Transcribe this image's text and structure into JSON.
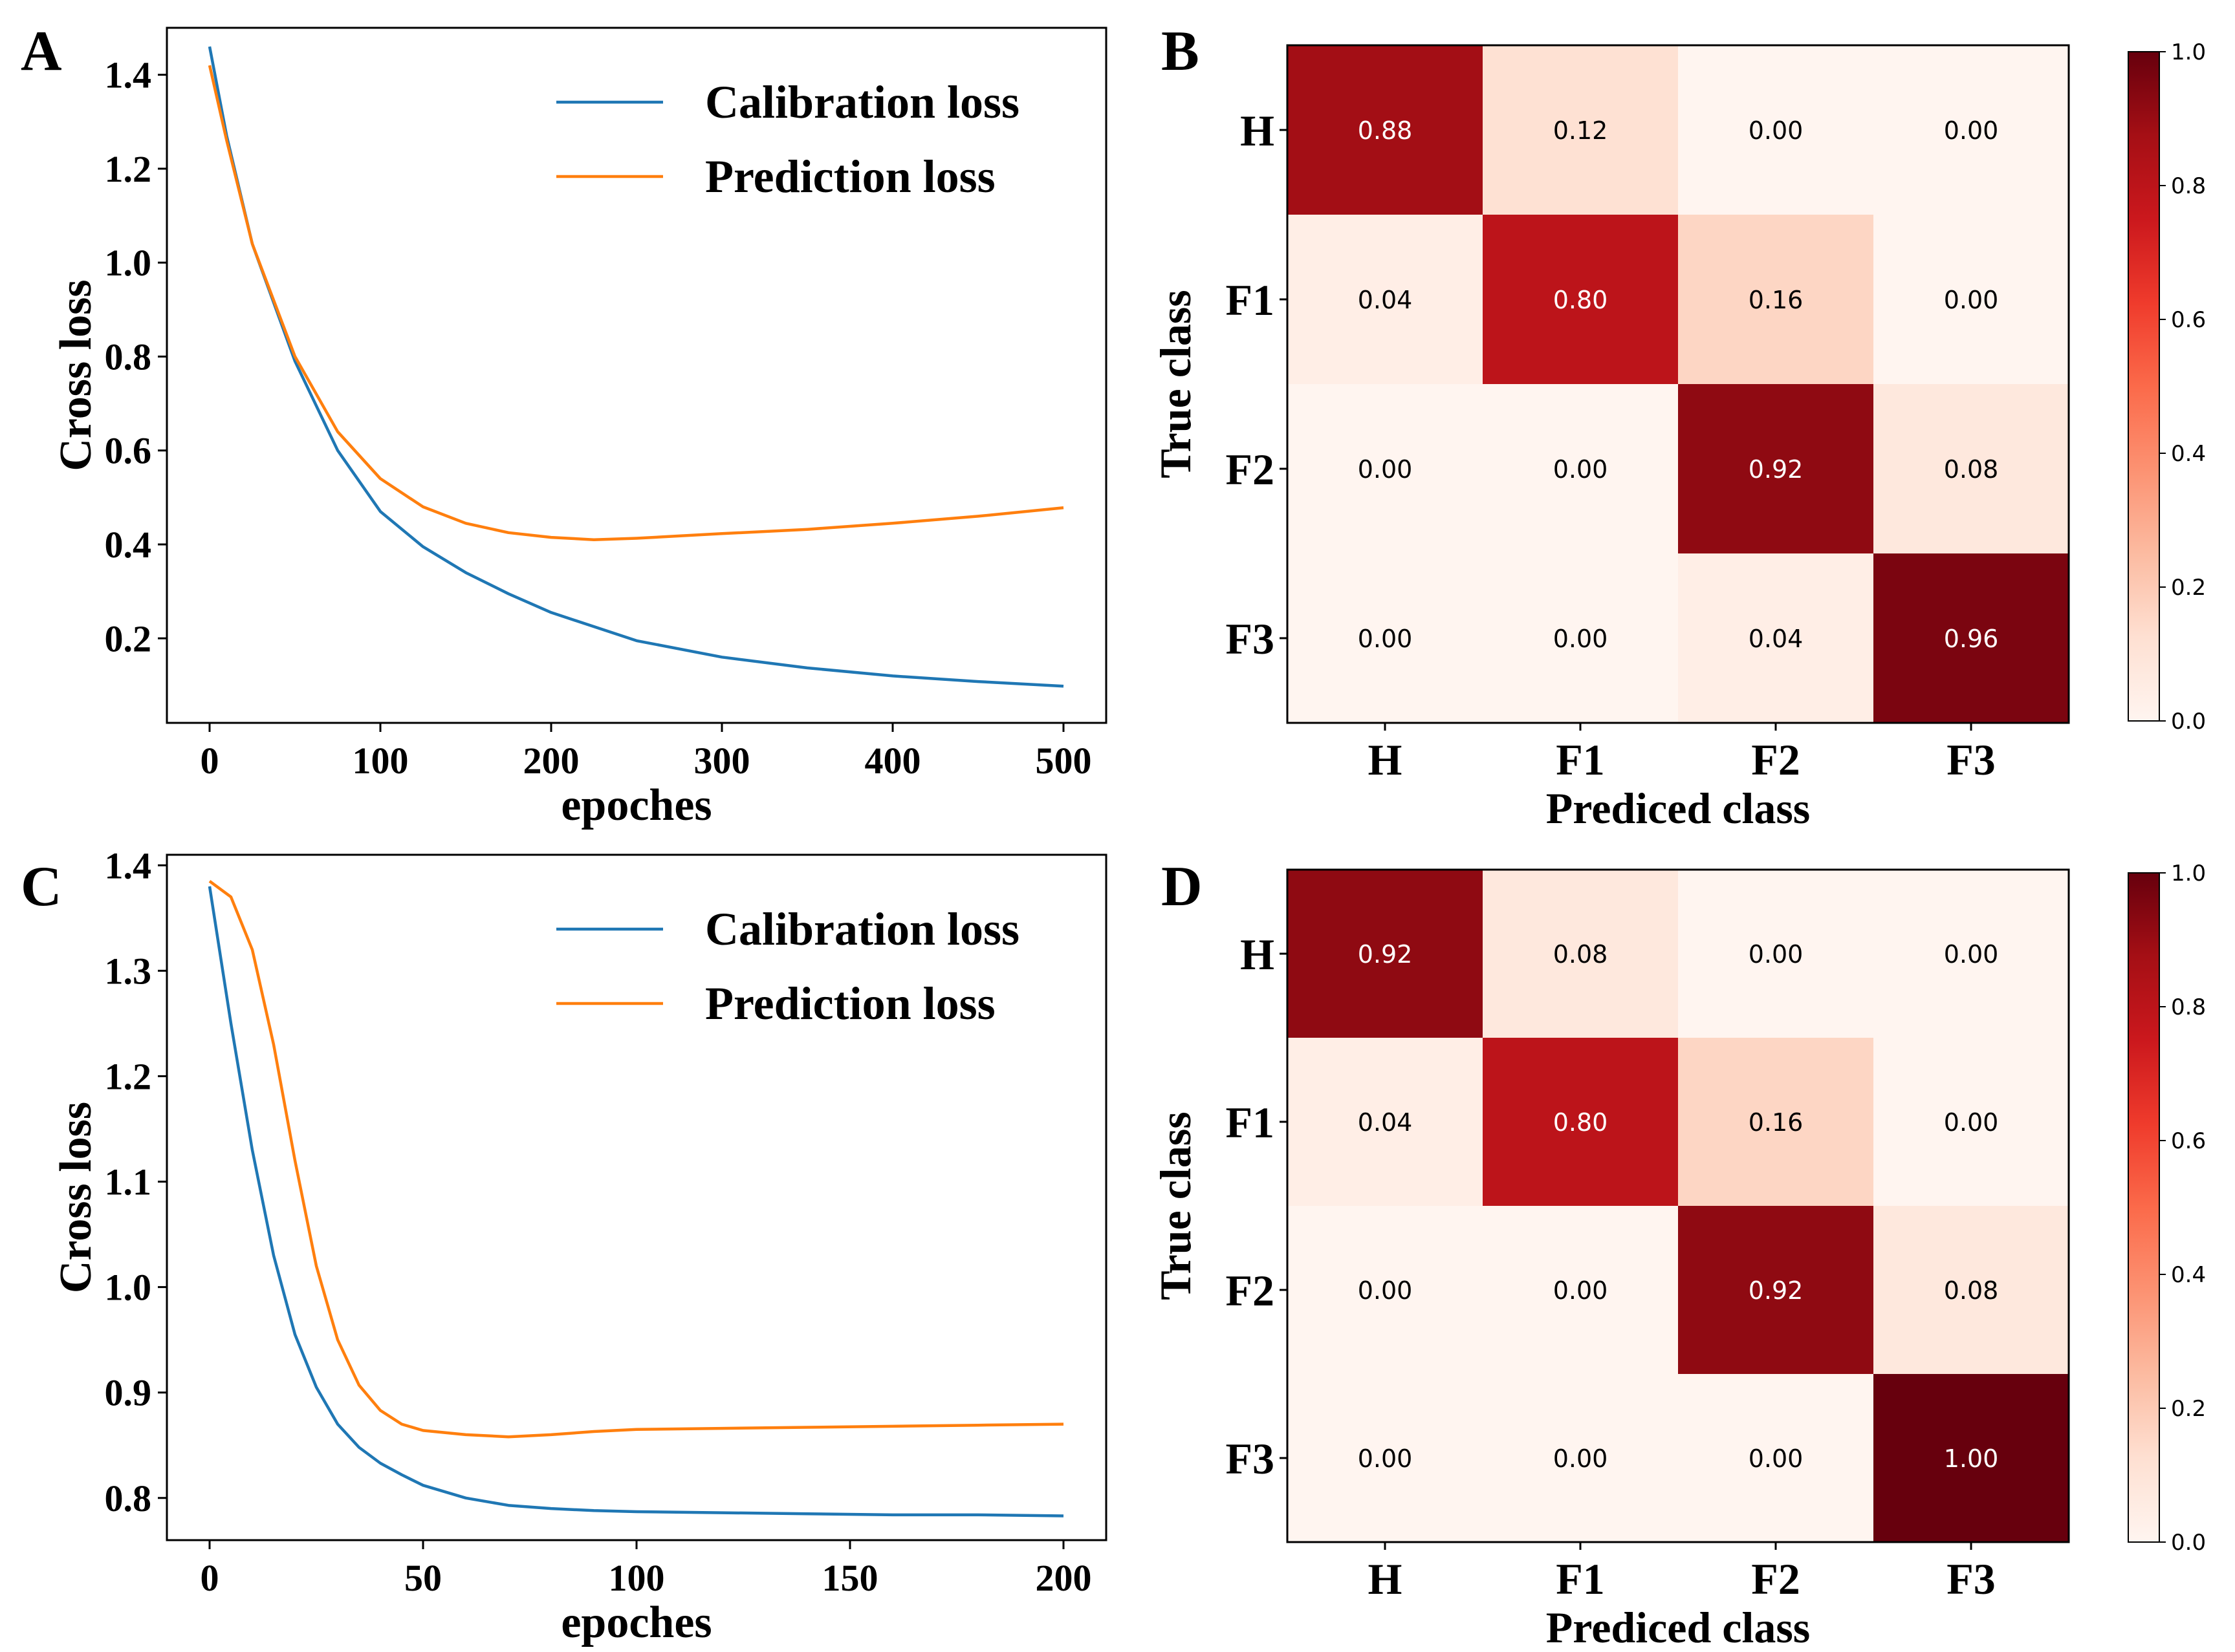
{
  "panel_letters": [
    "A",
    "B",
    "C",
    "D"
  ],
  "chart_data": [
    {
      "type": "line",
      "panel": "A",
      "xlabel": "epoches",
      "ylabel": "Cross loss",
      "xlim": [
        -25,
        525
      ],
      "ylim": [
        0.02,
        1.5
      ],
      "xticks": [
        0,
        100,
        200,
        300,
        400,
        500
      ],
      "yticks": [
        0.2,
        0.4,
        0.6,
        0.8,
        1.0,
        1.2,
        1.4
      ],
      "tick_labels_x": [
        "0",
        "100",
        "200",
        "300",
        "400",
        "500"
      ],
      "tick_labels_y": [
        "0.2",
        "0.4",
        "0.6",
        "0.8",
        "1.0",
        "1.2",
        "1.4"
      ],
      "legend_position": "top-right",
      "series": [
        {
          "name": "Calibration loss",
          "color": "#1f77b4",
          "x": [
            0,
            10,
            25,
            50,
            75,
            100,
            125,
            150,
            175,
            200,
            250,
            300,
            350,
            400,
            450,
            500
          ],
          "y": [
            1.46,
            1.27,
            1.04,
            0.79,
            0.6,
            0.47,
            0.395,
            0.34,
            0.295,
            0.255,
            0.195,
            0.16,
            0.137,
            0.12,
            0.108,
            0.098
          ]
        },
        {
          "name": "Prediction loss",
          "color": "#ff7f0e",
          "x": [
            0,
            10,
            25,
            50,
            75,
            100,
            125,
            150,
            175,
            200,
            225,
            250,
            275,
            300,
            350,
            400,
            450,
            500
          ],
          "y": [
            1.42,
            1.26,
            1.04,
            0.8,
            0.64,
            0.54,
            0.48,
            0.445,
            0.425,
            0.415,
            0.41,
            0.413,
            0.418,
            0.423,
            0.432,
            0.445,
            0.46,
            0.478
          ]
        }
      ]
    },
    {
      "type": "heatmap",
      "panel": "B",
      "xlabel": "Prediced class",
      "ylabel": "True class",
      "x_categories": [
        "H",
        "F1",
        "F2",
        "F3"
      ],
      "y_categories": [
        "H",
        "F1",
        "F2",
        "F3"
      ],
      "values": [
        [
          0.88,
          0.12,
          0.0,
          0.0
        ],
        [
          0.04,
          0.8,
          0.16,
          0.0
        ],
        [
          0.0,
          0.0,
          0.92,
          0.08
        ],
        [
          0.0,
          0.0,
          0.04,
          0.96
        ]
      ],
      "cell_labels": [
        [
          "0.88",
          "0.12",
          "0.00",
          "0.00"
        ],
        [
          "0.04",
          "0.80",
          "0.16",
          "0.00"
        ],
        [
          "0.00",
          "0.00",
          "0.92",
          "0.08"
        ],
        [
          "0.00",
          "0.00",
          "0.04",
          "0.96"
        ]
      ],
      "colormap": "Reds",
      "colorbar_range": [
        0.0,
        1.0
      ],
      "colorbar_ticks": [
        "0.0",
        "0.2",
        "0.4",
        "0.6",
        "0.8",
        "1.0"
      ]
    },
    {
      "type": "line",
      "panel": "C",
      "xlabel": "epoches",
      "ylabel": "Cross loss",
      "xlim": [
        -10,
        210
      ],
      "ylim": [
        0.76,
        1.41
      ],
      "xticks": [
        0,
        50,
        100,
        150,
        200
      ],
      "yticks": [
        0.8,
        0.9,
        1.0,
        1.1,
        1.2,
        1.3,
        1.4
      ],
      "tick_labels_x": [
        "0",
        "50",
        "100",
        "150",
        "200"
      ],
      "tick_labels_y": [
        "0.8",
        "0.9",
        "1.0",
        "1.1",
        "1.2",
        "1.3",
        "1.4"
      ],
      "legend_position": "top-right",
      "series": [
        {
          "name": "Calibration loss",
          "color": "#1f77b4",
          "x": [
            0,
            5,
            10,
            15,
            20,
            25,
            30,
            35,
            40,
            45,
            50,
            60,
            70,
            80,
            90,
            100,
            120,
            140,
            160,
            180,
            200
          ],
          "y": [
            1.38,
            1.25,
            1.13,
            1.03,
            0.955,
            0.905,
            0.87,
            0.848,
            0.833,
            0.822,
            0.812,
            0.8,
            0.793,
            0.79,
            0.788,
            0.787,
            0.786,
            0.785,
            0.784,
            0.784,
            0.783
          ]
        },
        {
          "name": "Prediction loss",
          "color": "#ff7f0e",
          "x": [
            0,
            5,
            10,
            15,
            20,
            25,
            30,
            35,
            40,
            45,
            50,
            60,
            70,
            80,
            90,
            100,
            120,
            140,
            160,
            180,
            200
          ],
          "y": [
            1.385,
            1.37,
            1.32,
            1.23,
            1.12,
            1.02,
            0.95,
            0.907,
            0.883,
            0.87,
            0.864,
            0.86,
            0.858,
            0.86,
            0.863,
            0.865,
            0.866,
            0.867,
            0.868,
            0.869,
            0.87
          ]
        }
      ]
    },
    {
      "type": "heatmap",
      "panel": "D",
      "xlabel": "Prediced class",
      "ylabel": "True class",
      "x_categories": [
        "H",
        "F1",
        "F2",
        "F3"
      ],
      "y_categories": [
        "H",
        "F1",
        "F2",
        "F3"
      ],
      "values": [
        [
          0.92,
          0.08,
          0.0,
          0.0
        ],
        [
          0.04,
          0.8,
          0.16,
          0.0
        ],
        [
          0.0,
          0.0,
          0.92,
          0.08
        ],
        [
          0.0,
          0.0,
          0.0,
          1.0
        ]
      ],
      "cell_labels": [
        [
          "0.92",
          "0.08",
          "0.00",
          "0.00"
        ],
        [
          "0.04",
          "0.80",
          "0.16",
          "0.00"
        ],
        [
          "0.00",
          "0.00",
          "0.92",
          "0.08"
        ],
        [
          "0.00",
          "0.00",
          "0.00",
          "1.00"
        ]
      ],
      "colormap": "Reds",
      "colorbar_range": [
        0.0,
        1.0
      ],
      "colorbar_ticks": [
        "0.0",
        "0.2",
        "0.4",
        "0.6",
        "0.8",
        "1.0"
      ]
    }
  ]
}
